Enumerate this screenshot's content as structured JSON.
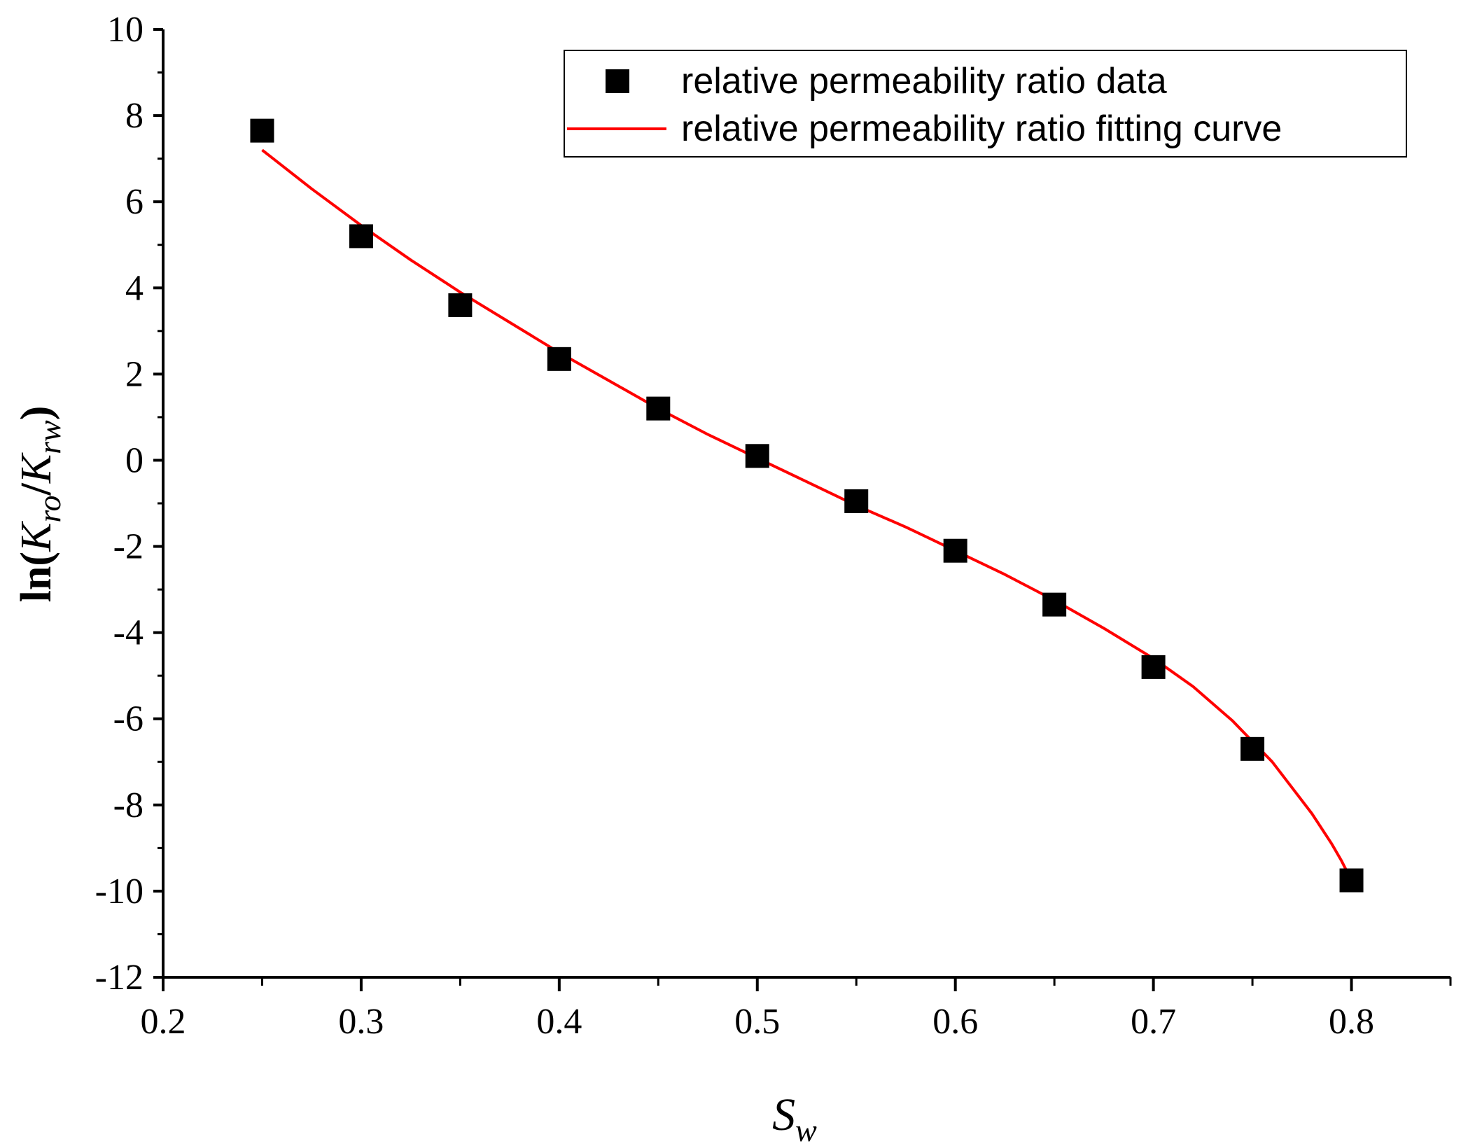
{
  "chart_data": {
    "type": "scatter",
    "title": "",
    "xlabel_main": "S",
    "xlabel_sub": "w",
    "ylabel_parts": [
      {
        "text": "ln(",
        "style": "normal"
      },
      {
        "text": "K",
        "style": "italic"
      },
      {
        "text": "ro",
        "style": "italic-sub"
      },
      {
        "text": "/",
        "style": "normal"
      },
      {
        "text": "K",
        "style": "italic"
      },
      {
        "text": "rw",
        "style": "italic-sub"
      },
      {
        "text": ")",
        "style": "normal"
      }
    ],
    "xlim": [
      0.2,
      0.85
    ],
    "ylim": [
      -12,
      10
    ],
    "x_ticks": [
      0.2,
      0.3,
      0.4,
      0.5,
      0.6,
      0.7,
      0.8
    ],
    "x_tick_labels": [
      "0.2",
      "0.3",
      "0.4",
      "0.5",
      "0.6",
      "0.7",
      "0.8"
    ],
    "y_ticks": [
      -12,
      -10,
      -8,
      -6,
      -4,
      -2,
      0,
      2,
      4,
      6,
      8,
      10
    ],
    "y_tick_labels": [
      "-12",
      "-10",
      "-8",
      "-6",
      "-4",
      "-2",
      "0",
      "2",
      "4",
      "6",
      "8",
      "10"
    ],
    "grid": false,
    "legend_position": "top-right",
    "series": [
      {
        "name": "relative permeability ratio data",
        "kind": "markers",
        "marker": "square",
        "color": "#000000",
        "x": [
          0.25,
          0.3,
          0.35,
          0.4,
          0.45,
          0.5,
          0.55,
          0.6,
          0.65,
          0.7,
          0.75,
          0.8
        ],
        "y": [
          7.65,
          5.2,
          3.6,
          2.35,
          1.2,
          0.1,
          -0.95,
          -2.1,
          -3.35,
          -4.8,
          -6.7,
          -9.75
        ]
      },
      {
        "name": "relative permeability ratio fitting curve",
        "kind": "line",
        "color": "#ff0000",
        "x": [
          0.25,
          0.275,
          0.3,
          0.325,
          0.35,
          0.375,
          0.4,
          0.425,
          0.45,
          0.475,
          0.5,
          0.525,
          0.55,
          0.575,
          0.6,
          0.625,
          0.65,
          0.675,
          0.7,
          0.72,
          0.74,
          0.76,
          0.77,
          0.78,
          0.79,
          0.795,
          0.8
        ],
        "y": [
          7.2,
          6.3,
          5.45,
          4.65,
          3.9,
          3.2,
          2.5,
          1.85,
          1.2,
          0.6,
          0.05,
          -0.5,
          -1.05,
          -1.55,
          -2.1,
          -2.65,
          -3.25,
          -3.9,
          -4.6,
          -5.25,
          -6.05,
          -7.0,
          -7.6,
          -8.2,
          -8.9,
          -9.3,
          -9.75
        ]
      }
    ]
  }
}
